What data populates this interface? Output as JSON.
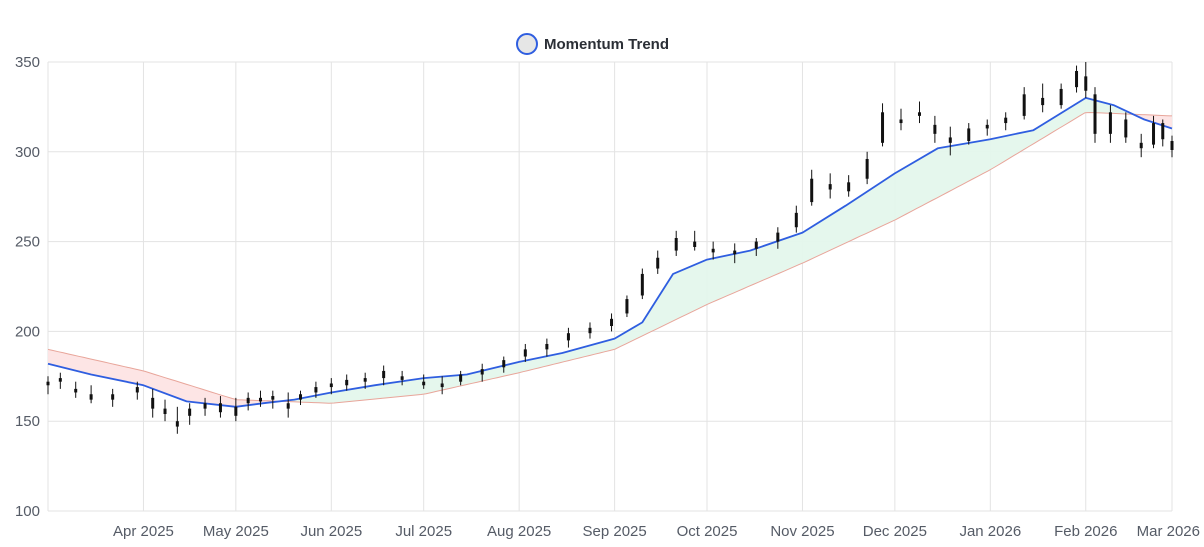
{
  "chart_data": {
    "type": "candlestick",
    "legend": {
      "label": "Momentum Trend",
      "position": "top-center",
      "color": "#2f5ee0",
      "fill": "#e6e6e6"
    },
    "x_ticks": [
      "Apr 2025",
      "May 2025",
      "Jun 2025",
      "Jul 2025",
      "Aug 2025",
      "Sep 2025",
      "Oct 2025",
      "Nov 2025",
      "Dec 2025",
      "Jan 2026",
      "Feb 2026",
      "Mar 2026"
    ],
    "x_range": [
      "2025-03-01",
      "2026-03-01"
    ],
    "ylim": [
      100,
      350
    ],
    "y_ticks": [
      100,
      150,
      200,
      250,
      300,
      350
    ],
    "grid": true,
    "colors": {
      "candle": "#111111",
      "trend": "#2f5ee0",
      "bull_fill": "#e4f7ec",
      "bear_fill": "#fde4e4",
      "band_line": "#e8a59a"
    },
    "trend": [
      [
        "2025-03-01",
        182
      ],
      [
        "2025-03-15",
        176
      ],
      [
        "2025-04-01",
        170
      ],
      [
        "2025-04-15",
        161
      ],
      [
        "2025-05-01",
        158
      ],
      [
        "2025-05-10",
        160
      ],
      [
        "2025-05-20",
        162
      ],
      [
        "2025-06-01",
        166
      ],
      [
        "2025-06-15",
        170
      ],
      [
        "2025-07-01",
        174
      ],
      [
        "2025-07-15",
        176
      ],
      [
        "2025-08-01",
        183
      ],
      [
        "2025-08-15",
        188
      ],
      [
        "2025-09-01",
        196
      ],
      [
        "2025-09-10",
        205
      ],
      [
        "2025-09-20",
        232
      ],
      [
        "2025-10-01",
        240
      ],
      [
        "2025-10-15",
        245
      ],
      [
        "2025-11-01",
        255
      ],
      [
        "2025-11-15",
        270
      ],
      [
        "2025-12-01",
        288
      ],
      [
        "2025-12-15",
        302
      ],
      [
        "2026-01-01",
        307
      ],
      [
        "2026-01-15",
        312
      ],
      [
        "2026-02-01",
        330
      ],
      [
        "2026-02-10",
        326
      ],
      [
        "2026-02-20",
        318
      ],
      [
        "2026-03-01",
        313
      ]
    ],
    "lower_band": [
      [
        "2025-03-01",
        190
      ],
      [
        "2025-04-01",
        178
      ],
      [
        "2025-05-01",
        162
      ],
      [
        "2025-06-01",
        160
      ],
      [
        "2025-07-01",
        165
      ],
      [
        "2025-08-01",
        177
      ],
      [
        "2025-09-01",
        190
      ],
      [
        "2025-10-01",
        215
      ],
      [
        "2025-11-01",
        238
      ],
      [
        "2025-12-01",
        262
      ],
      [
        "2026-01-01",
        290
      ],
      [
        "2026-02-01",
        322
      ],
      [
        "2026-03-01",
        320
      ]
    ],
    "candles": [
      [
        "2025-03-01",
        170,
        175,
        165,
        172
      ],
      [
        "2025-03-05",
        172,
        177,
        168,
        174
      ],
      [
        "2025-03-10",
        168,
        172,
        163,
        166
      ],
      [
        "2025-03-15",
        165,
        170,
        160,
        162
      ],
      [
        "2025-03-22",
        162,
        168,
        158,
        165
      ],
      [
        "2025-03-30",
        166,
        172,
        162,
        169
      ],
      [
        "2025-04-04",
        163,
        168,
        152,
        157
      ],
      [
        "2025-04-08",
        157,
        162,
        150,
        154
      ],
      [
        "2025-04-12",
        150,
        158,
        143,
        147
      ],
      [
        "2025-04-16",
        153,
        160,
        148,
        157
      ],
      [
        "2025-04-21",
        157,
        163,
        153,
        160
      ],
      [
        "2025-04-26",
        160,
        164,
        152,
        155
      ],
      [
        "2025-05-01",
        158,
        163,
        150,
        153
      ],
      [
        "2025-05-05",
        160,
        166,
        156,
        163
      ],
      [
        "2025-05-09",
        163,
        167,
        158,
        161
      ],
      [
        "2025-05-13",
        162,
        167,
        157,
        164
      ],
      [
        "2025-05-18",
        160,
        166,
        152,
        157
      ],
      [
        "2025-05-22",
        162,
        167,
        159,
        165
      ],
      [
        "2025-05-27",
        166,
        172,
        163,
        169
      ],
      [
        "2025-06-01",
        169,
        174,
        165,
        171
      ],
      [
        "2025-06-06",
        170,
        176,
        167,
        173
      ],
      [
        "2025-06-12",
        172,
        177,
        168,
        174
      ],
      [
        "2025-06-18",
        174,
        181,
        170,
        178
      ],
      [
        "2025-06-24",
        173,
        178,
        170,
        175
      ],
      [
        "2025-07-01",
        172,
        176,
        168,
        170
      ],
      [
        "2025-07-07",
        171,
        175,
        165,
        169
      ],
      [
        "2025-07-13",
        172,
        178,
        170,
        176
      ],
      [
        "2025-07-20",
        176,
        182,
        172,
        179
      ],
      [
        "2025-07-27",
        180,
        186,
        177,
        184
      ],
      [
        "2025-08-03",
        186,
        193,
        183,
        190
      ],
      [
        "2025-08-10",
        190,
        196,
        186,
        193
      ],
      [
        "2025-08-17",
        195,
        202,
        191,
        199
      ],
      [
        "2025-08-24",
        199,
        205,
        196,
        202
      ],
      [
        "2025-08-31",
        203,
        210,
        200,
        207
      ],
      [
        "2025-09-05",
        210,
        220,
        208,
        218
      ],
      [
        "2025-09-10",
        220,
        235,
        218,
        232
      ],
      [
        "2025-09-15",
        235,
        245,
        232,
        241
      ],
      [
        "2025-09-21",
        245,
        256,
        242,
        252
      ],
      [
        "2025-09-27",
        250,
        256,
        245,
        247
      ],
      [
        "2025-10-03",
        244,
        250,
        240,
        246
      ],
      [
        "2025-10-10",
        243,
        249,
        238,
        245
      ],
      [
        "2025-10-17",
        246,
        252,
        242,
        250
      ],
      [
        "2025-10-24",
        250,
        258,
        246,
        255
      ],
      [
        "2025-10-30",
        258,
        270,
        255,
        266
      ],
      [
        "2025-11-04",
        272,
        290,
        270,
        285
      ],
      [
        "2025-11-10",
        282,
        288,
        274,
        279
      ],
      [
        "2025-11-16",
        278,
        287,
        275,
        283
      ],
      [
        "2025-11-22",
        285,
        300,
        282,
        296
      ],
      [
        "2025-11-27",
        305,
        327,
        303,
        322
      ],
      [
        "2025-12-03",
        318,
        324,
        312,
        316
      ],
      [
        "2025-12-09",
        322,
        328,
        316,
        320
      ],
      [
        "2025-12-14",
        315,
        320,
        305,
        310
      ],
      [
        "2025-12-19",
        308,
        314,
        298,
        305
      ],
      [
        "2025-12-25",
        306,
        316,
        304,
        313
      ],
      [
        "2025-12-31",
        313,
        318,
        309,
        315
      ],
      [
        "2026-01-06",
        316,
        322,
        312,
        319
      ],
      [
        "2026-01-12",
        320,
        336,
        318,
        332
      ],
      [
        "2026-01-18",
        330,
        338,
        322,
        326
      ],
      [
        "2026-01-24",
        326,
        338,
        324,
        335
      ],
      [
        "2026-01-29",
        336,
        348,
        333,
        345
      ],
      [
        "2026-02-01",
        342,
        350,
        330,
        334
      ],
      [
        "2026-02-04",
        332,
        336,
        305,
        310
      ],
      [
        "2026-02-09",
        310,
        326,
        305,
        322
      ],
      [
        "2026-02-14",
        318,
        322,
        305,
        308
      ],
      [
        "2026-02-19",
        302,
        310,
        297,
        305
      ],
      [
        "2026-02-23",
        304,
        320,
        302,
        316
      ],
      [
        "2026-02-26",
        316,
        318,
        303,
        307
      ],
      [
        "2026-03-01",
        306,
        309,
        297,
        301
      ]
    ]
  }
}
